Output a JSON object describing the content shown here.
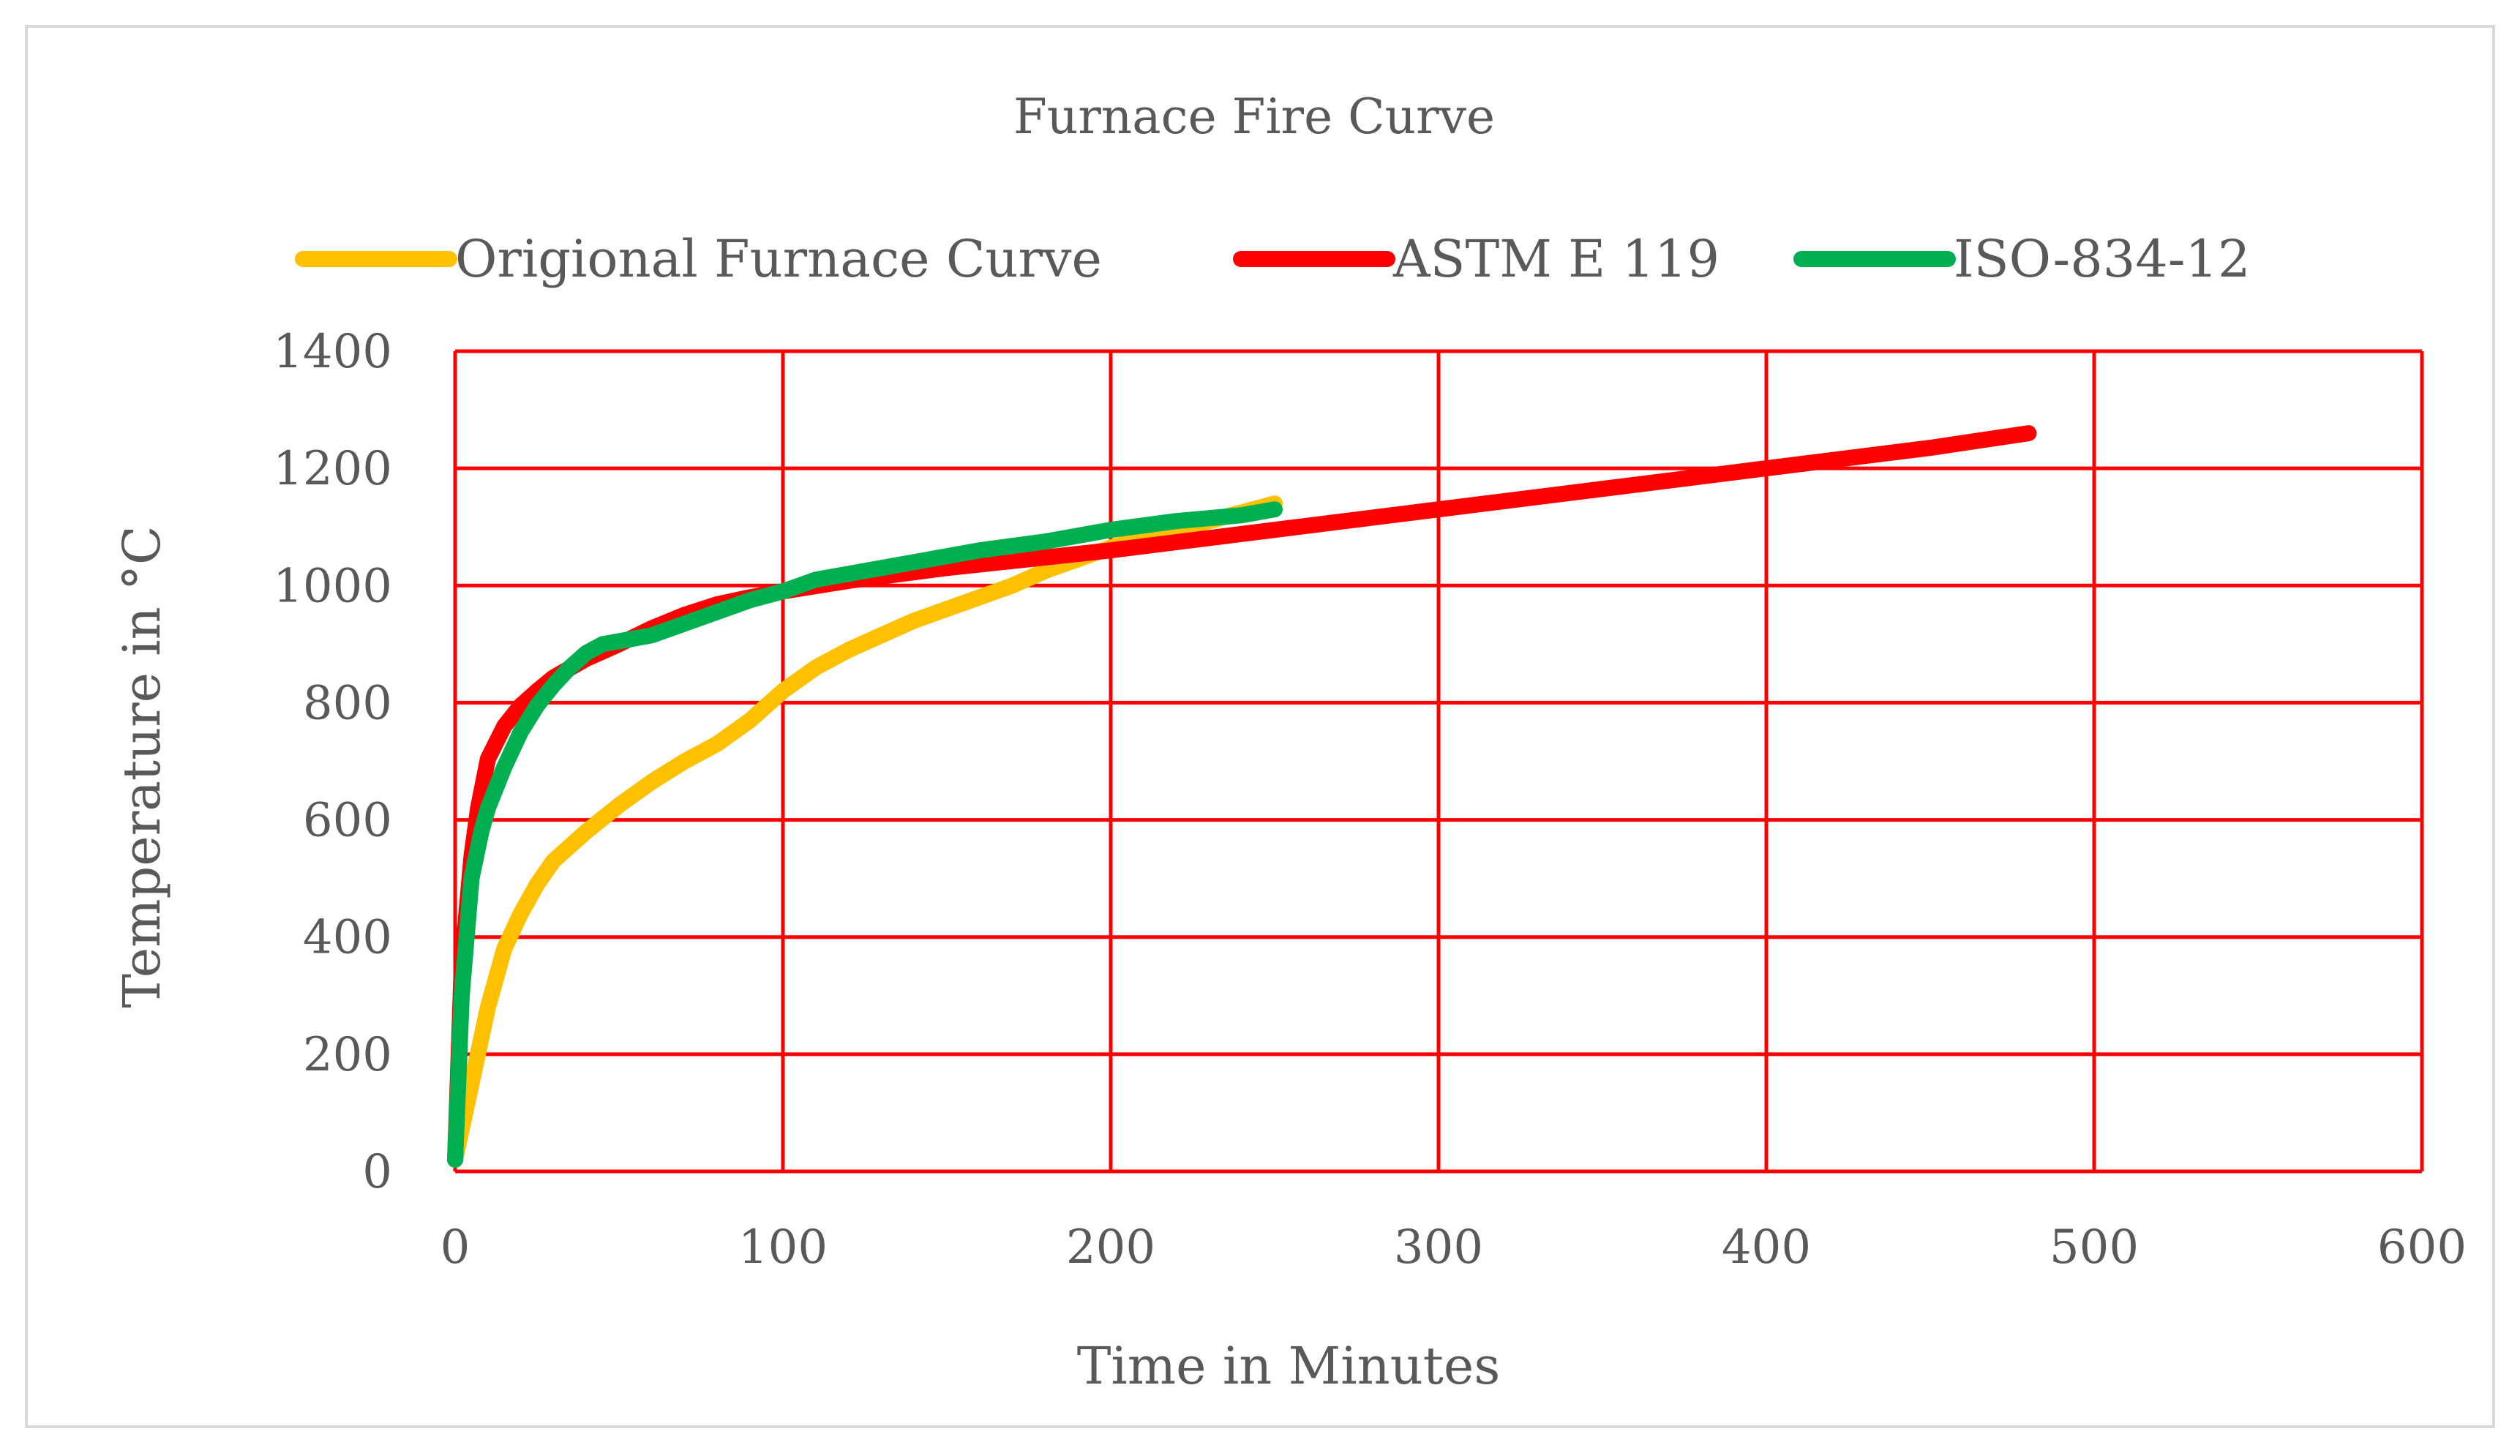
{
  "chart_data": {
    "type": "line",
    "title": "Furnace Fire Curve",
    "xlabel": "Time in Minutes",
    "ylabel": "Temperature in °C",
    "xlim": [
      0,
      600
    ],
    "ylim": [
      0,
      1400
    ],
    "xticks": [
      0,
      100,
      200,
      300,
      400,
      500,
      600
    ],
    "yticks": [
      0,
      200,
      400,
      600,
      800,
      1000,
      1200,
      1400
    ],
    "grid": true,
    "grid_color": "#ff0000",
    "legend_position": "top",
    "series": [
      {
        "name": "Origional Furnace Curve",
        "color": "#ffc000",
        "points": [
          [
            0,
            20
          ],
          [
            5,
            150
          ],
          [
            10,
            280
          ],
          [
            15,
            380
          ],
          [
            20,
            440
          ],
          [
            25,
            490
          ],
          [
            30,
            530
          ],
          [
            40,
            580
          ],
          [
            50,
            625
          ],
          [
            60,
            665
          ],
          [
            70,
            700
          ],
          [
            80,
            730
          ],
          [
            90,
            770
          ],
          [
            100,
            820
          ],
          [
            110,
            860
          ],
          [
            120,
            890
          ],
          [
            130,
            915
          ],
          [
            140,
            940
          ],
          [
            150,
            960
          ],
          [
            160,
            980
          ],
          [
            170,
            1000
          ],
          [
            180,
            1025
          ],
          [
            190,
            1045
          ],
          [
            200,
            1065
          ],
          [
            210,
            1080
          ],
          [
            220,
            1095
          ],
          [
            230,
            1110
          ],
          [
            240,
            1125
          ],
          [
            250,
            1140
          ]
        ]
      },
      {
        "name": "ASTM E 119",
        "color": "#ff0000",
        "points": [
          [
            0,
            20
          ],
          [
            2,
            350
          ],
          [
            5,
            538
          ],
          [
            7,
            620
          ],
          [
            10,
            704
          ],
          [
            15,
            760
          ],
          [
            20,
            795
          ],
          [
            25,
            820
          ],
          [
            30,
            843
          ],
          [
            40,
            875
          ],
          [
            50,
            900
          ],
          [
            60,
            927
          ],
          [
            70,
            950
          ],
          [
            80,
            968
          ],
          [
            90,
            980
          ],
          [
            100,
            990
          ],
          [
            120,
            1008
          ],
          [
            150,
            1030
          ],
          [
            180,
            1048
          ],
          [
            200,
            1060
          ],
          [
            250,
            1095
          ],
          [
            300,
            1130
          ],
          [
            350,
            1165
          ],
          [
            400,
            1200
          ],
          [
            450,
            1235
          ],
          [
            480,
            1260
          ]
        ]
      },
      {
        "name": "ISO-834-12",
        "color": "#00b050",
        "points": [
          [
            0,
            20
          ],
          [
            2,
            300
          ],
          [
            5,
            500
          ],
          [
            8,
            580
          ],
          [
            10,
            620
          ],
          [
            15,
            690
          ],
          [
            20,
            750
          ],
          [
            25,
            795
          ],
          [
            30,
            830
          ],
          [
            35,
            860
          ],
          [
            40,
            885
          ],
          [
            45,
            900
          ],
          [
            50,
            905
          ],
          [
            60,
            915
          ],
          [
            70,
            935
          ],
          [
            80,
            955
          ],
          [
            90,
            975
          ],
          [
            100,
            990
          ],
          [
            110,
            1010
          ],
          [
            120,
            1020
          ],
          [
            140,
            1040
          ],
          [
            160,
            1060
          ],
          [
            180,
            1075
          ],
          [
            200,
            1095
          ],
          [
            220,
            1110
          ],
          [
            240,
            1120
          ],
          [
            250,
            1130
          ]
        ]
      }
    ]
  }
}
